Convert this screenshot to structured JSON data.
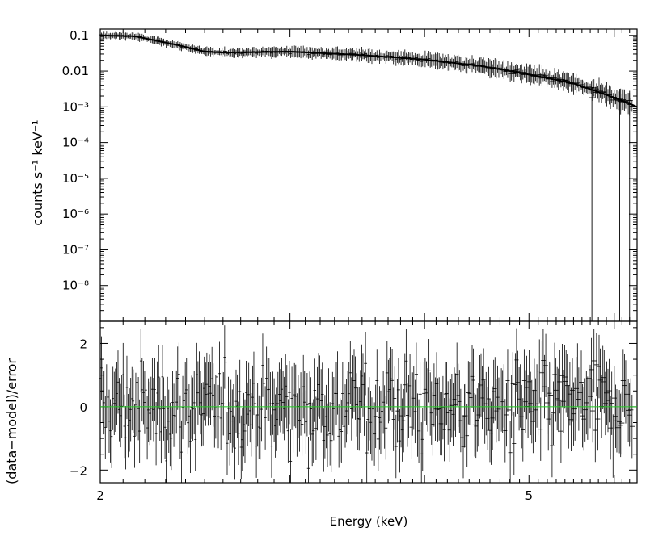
{
  "chart_data": [
    {
      "type": "scatter",
      "panel": "spectrum",
      "ylabel": "counts s⁻¹ keV⁻¹",
      "yscale": "log",
      "ylim": [
        1e-09,
        0.15
      ],
      "xlim": [
        2.0,
        6.3
      ],
      "ytick_labels": [
        "0.1",
        "0.01",
        "10⁻³",
        "10⁻⁴",
        "10⁻⁵",
        "10⁻⁶",
        "10⁻⁷",
        "10⁻⁸"
      ],
      "ytick_values": [
        0.1,
        0.01,
        0.001,
        0.0001,
        1e-05,
        1e-06,
        1e-07,
        1e-08
      ],
      "model_line": {
        "x": [
          2.0,
          2.15,
          2.35,
          2.5,
          2.6,
          3.0,
          3.5,
          4.0,
          4.5,
          5.0,
          5.5,
          6.0,
          6.3
        ],
        "y": [
          0.1,
          0.095,
          0.055,
          0.035,
          0.033,
          0.035,
          0.028,
          0.021,
          0.014,
          0.008,
          0.0045,
          0.0018,
          0.001
        ]
      },
      "outlier_points": [
        {
          "x": 5.72,
          "y": 0.0018,
          "ylow": 1e-09
        },
        {
          "x": 6.07,
          "y": 0.0017,
          "ylow": 1e-09
        },
        {
          "x": 6.2,
          "y": 0.0015,
          "ylow": 1e-09
        }
      ],
      "grid": false
    },
    {
      "type": "scatter",
      "panel": "residuals",
      "xlabel": "Energy (keV)",
      "ylabel": "(data−model)/error",
      "ylim": [
        -2.4,
        2.7
      ],
      "xlim": [
        2.0,
        6.3
      ],
      "xscale": "log",
      "xtick_labels": [
        "2",
        "5"
      ],
      "xtick_values": [
        2,
        5
      ],
      "ytick_labels": [
        "2",
        "0",
        "−2"
      ],
      "ytick_values": [
        2,
        0,
        -2
      ],
      "zero_line": 0,
      "zero_line_color": "#22cc22",
      "grid": false
    }
  ],
  "colors": {
    "data": "#000000",
    "model": "#000000",
    "zero_line": "#22cc22",
    "background": "#ffffff"
  }
}
